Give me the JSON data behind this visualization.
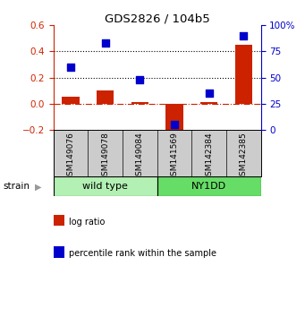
{
  "title": "GDS2826 / 104b5",
  "samples": [
    "GSM149076",
    "GSM149078",
    "GSM149084",
    "GSM141569",
    "GSM142384",
    "GSM142385"
  ],
  "log_ratio": [
    0.05,
    0.1,
    0.01,
    -0.23,
    0.01,
    0.45
  ],
  "percentile_rank": [
    60,
    83,
    48,
    5,
    35,
    90
  ],
  "groups": [
    {
      "name": "wild type",
      "indices": [
        0,
        1,
        2
      ],
      "color": "#b3f0b3"
    },
    {
      "name": "NY1DD",
      "indices": [
        3,
        4,
        5
      ],
      "color": "#66dd66"
    }
  ],
  "ylim_left": [
    -0.2,
    0.6
  ],
  "ylim_right": [
    0,
    100
  ],
  "yticks_left": [
    -0.2,
    0.0,
    0.2,
    0.4,
    0.6
  ],
  "yticks_right": [
    0,
    25,
    50,
    75,
    100
  ],
  "hline_dotted": [
    0.2,
    0.4
  ],
  "hline_dashed": 0.0,
  "bar_color": "#cc2200",
  "dot_color": "#0000cc",
  "bar_width": 0.5,
  "dot_size": 40,
  "legend_labels": [
    "log ratio",
    "percentile rank within the sample"
  ],
  "strain_label": "strain",
  "background_color": "#ffffff",
  "label_bg_color": "#cccccc",
  "group_colors": [
    "#b3f0b3",
    "#66dd66"
  ]
}
